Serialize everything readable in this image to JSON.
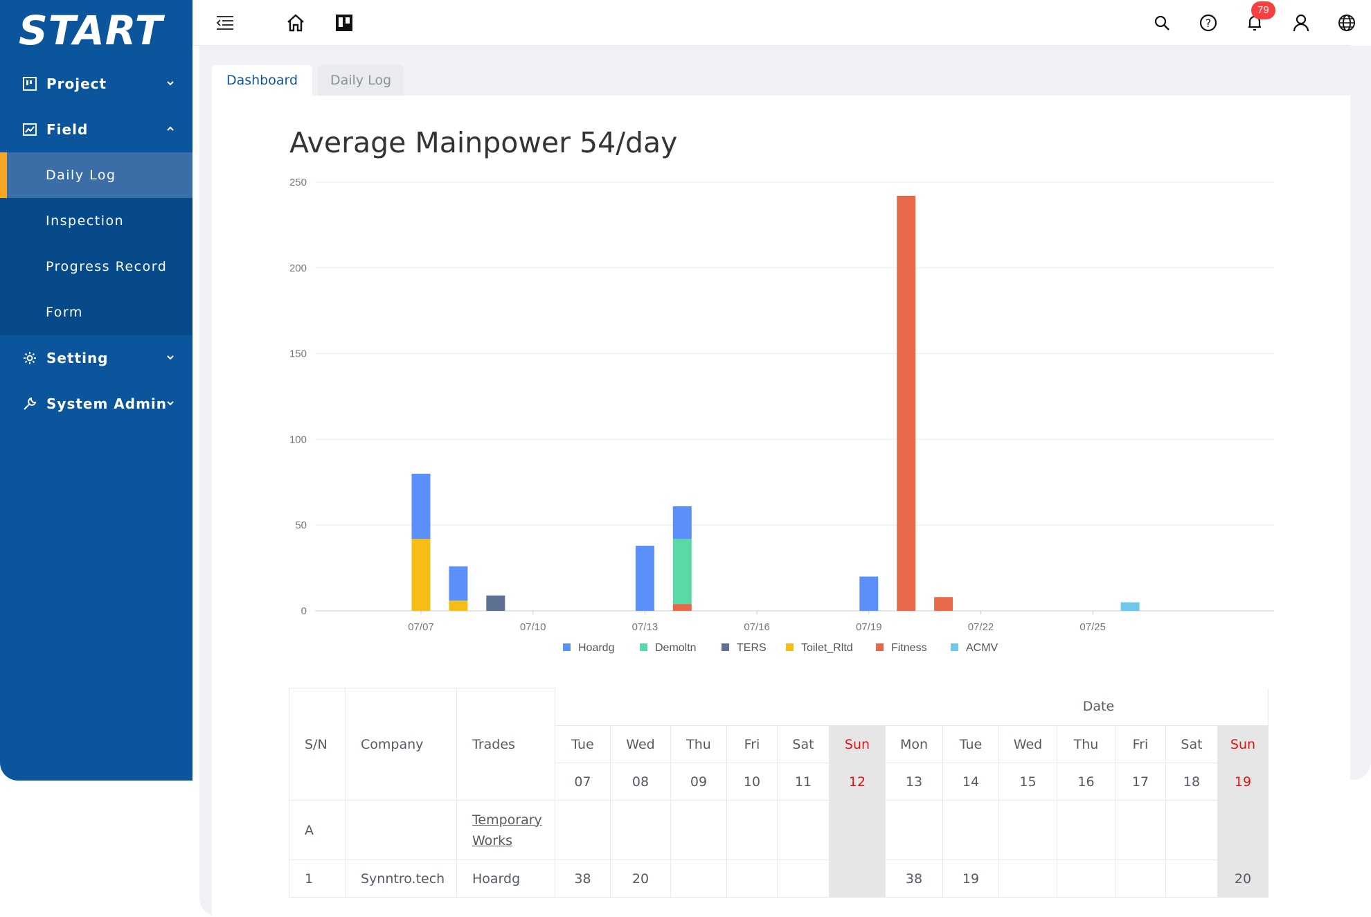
{
  "logo": {
    "text": "START"
  },
  "sidebar": {
    "items": [
      {
        "label": "Project",
        "icon": "board-icon",
        "expanded": false
      },
      {
        "label": "Field",
        "icon": "chart-line-icon",
        "expanded": true,
        "children": [
          "Daily Log",
          "Inspection",
          "Progress Record",
          "Form"
        ]
      },
      {
        "label": "Setting",
        "icon": "gear-icon",
        "expanded": false
      },
      {
        "label": "System Admin",
        "icon": "wrench-icon",
        "expanded": false
      }
    ],
    "active_child": "Daily Log"
  },
  "topbar": {
    "icons": [
      "menu-fold-icon",
      "home-icon",
      "trello-icon",
      "search-icon",
      "help-icon",
      "bell-icon",
      "user-icon",
      "globe-icon"
    ],
    "notifications": "79"
  },
  "tabs": [
    "Dashboard",
    "Daily Log"
  ],
  "colors": {
    "Hoardg": "#5b8ff9",
    "Demoltn": "#5ad8a6",
    "TERS": "#5d7092",
    "Toilet_Rltd": "#f6bd16",
    "Fitness": "#e8684a",
    "ACMV": "#6dc8ec"
  },
  "chart_data": {
    "type": "bar",
    "title": "Average Mainpower 54/day",
    "stacked": true,
    "x": [
      "07/07",
      "07/08",
      "07/09",
      "07/10",
      "07/11",
      "07/12",
      "07/13",
      "07/14",
      "07/15",
      "07/16",
      "07/17",
      "07/18",
      "07/19",
      "07/20",
      "07/21",
      "07/22",
      "07/23",
      "07/24",
      "07/25",
      "07/26",
      "07/27"
    ],
    "xticks": [
      "07/07",
      "07/10",
      "07/13",
      "07/16",
      "07/19",
      "07/22",
      "07/25"
    ],
    "yticks": [
      "0",
      "50",
      "100",
      "150",
      "200",
      "250"
    ],
    "ylim": [
      0,
      250
    ],
    "series": [
      {
        "name": "Hoardg",
        "values": [
          38,
          20,
          0,
          0,
          0,
          0,
          38,
          19,
          0,
          0,
          0,
          0,
          20,
          0,
          0,
          0,
          0,
          0,
          0,
          0,
          0
        ]
      },
      {
        "name": "Demoltn",
        "values": [
          0,
          0,
          0,
          0,
          0,
          0,
          0,
          38,
          0,
          0,
          0,
          0,
          0,
          0,
          0,
          0,
          0,
          0,
          0,
          0,
          0
        ]
      },
      {
        "name": "TERS",
        "values": [
          0,
          0,
          9,
          0,
          0,
          0,
          0,
          0,
          0,
          0,
          0,
          0,
          0,
          0,
          0,
          0,
          0,
          0,
          0,
          0,
          0
        ]
      },
      {
        "name": "Toilet_Rltd",
        "values": [
          42,
          6,
          0,
          0,
          0,
          0,
          0,
          0,
          0,
          0,
          0,
          0,
          0,
          0,
          0,
          0,
          0,
          0,
          0,
          0,
          0
        ]
      },
      {
        "name": "Fitness",
        "values": [
          0,
          0,
          0,
          0,
          0,
          0,
          0,
          4,
          0,
          0,
          0,
          0,
          0,
          242,
          8,
          0,
          0,
          0,
          0,
          0,
          0
        ]
      },
      {
        "name": "ACMV",
        "values": [
          0,
          0,
          0,
          0,
          0,
          0,
          0,
          0,
          0,
          0,
          0,
          0,
          0,
          0,
          0,
          0,
          0,
          0,
          0,
          5,
          0
        ]
      }
    ],
    "legend_position": "bottom"
  },
  "table": {
    "headers": {
      "sn": "S/N",
      "company": "Company",
      "trades": "Trades",
      "date": "Date"
    },
    "days": [
      {
        "dow": "Tue",
        "date": "07",
        "sun": false
      },
      {
        "dow": "Wed",
        "date": "08",
        "sun": false
      },
      {
        "dow": "Thu",
        "date": "09",
        "sun": false
      },
      {
        "dow": "Fri",
        "date": "10",
        "sun": false
      },
      {
        "dow": "Sat",
        "date": "11",
        "sun": false
      },
      {
        "dow": "Sun",
        "date": "12",
        "sun": true
      },
      {
        "dow": "Mon",
        "date": "13",
        "sun": false
      },
      {
        "dow": "Tue",
        "date": "14",
        "sun": false
      },
      {
        "dow": "Wed",
        "date": "15",
        "sun": false
      },
      {
        "dow": "Thu",
        "date": "16",
        "sun": false
      },
      {
        "dow": "Fri",
        "date": "17",
        "sun": false
      },
      {
        "dow": "Sat",
        "date": "18",
        "sun": false
      },
      {
        "dow": "Sun",
        "date": "19",
        "sun": true
      }
    ],
    "rows": [
      {
        "sn": "A",
        "company": "",
        "trades": "Temporary Works",
        "trades_link": true,
        "values": [
          "",
          "",
          "",
          "",
          "",
          "",
          "",
          "",
          "",
          "",
          "",
          "",
          ""
        ]
      },
      {
        "sn": "1",
        "company": "Synntro.tech",
        "trades": "Hoardg",
        "trades_link": false,
        "values": [
          "38",
          "20",
          "",
          "",
          "",
          "",
          "38",
          "19",
          "",
          "",
          "",
          "",
          "20"
        ]
      }
    ]
  }
}
